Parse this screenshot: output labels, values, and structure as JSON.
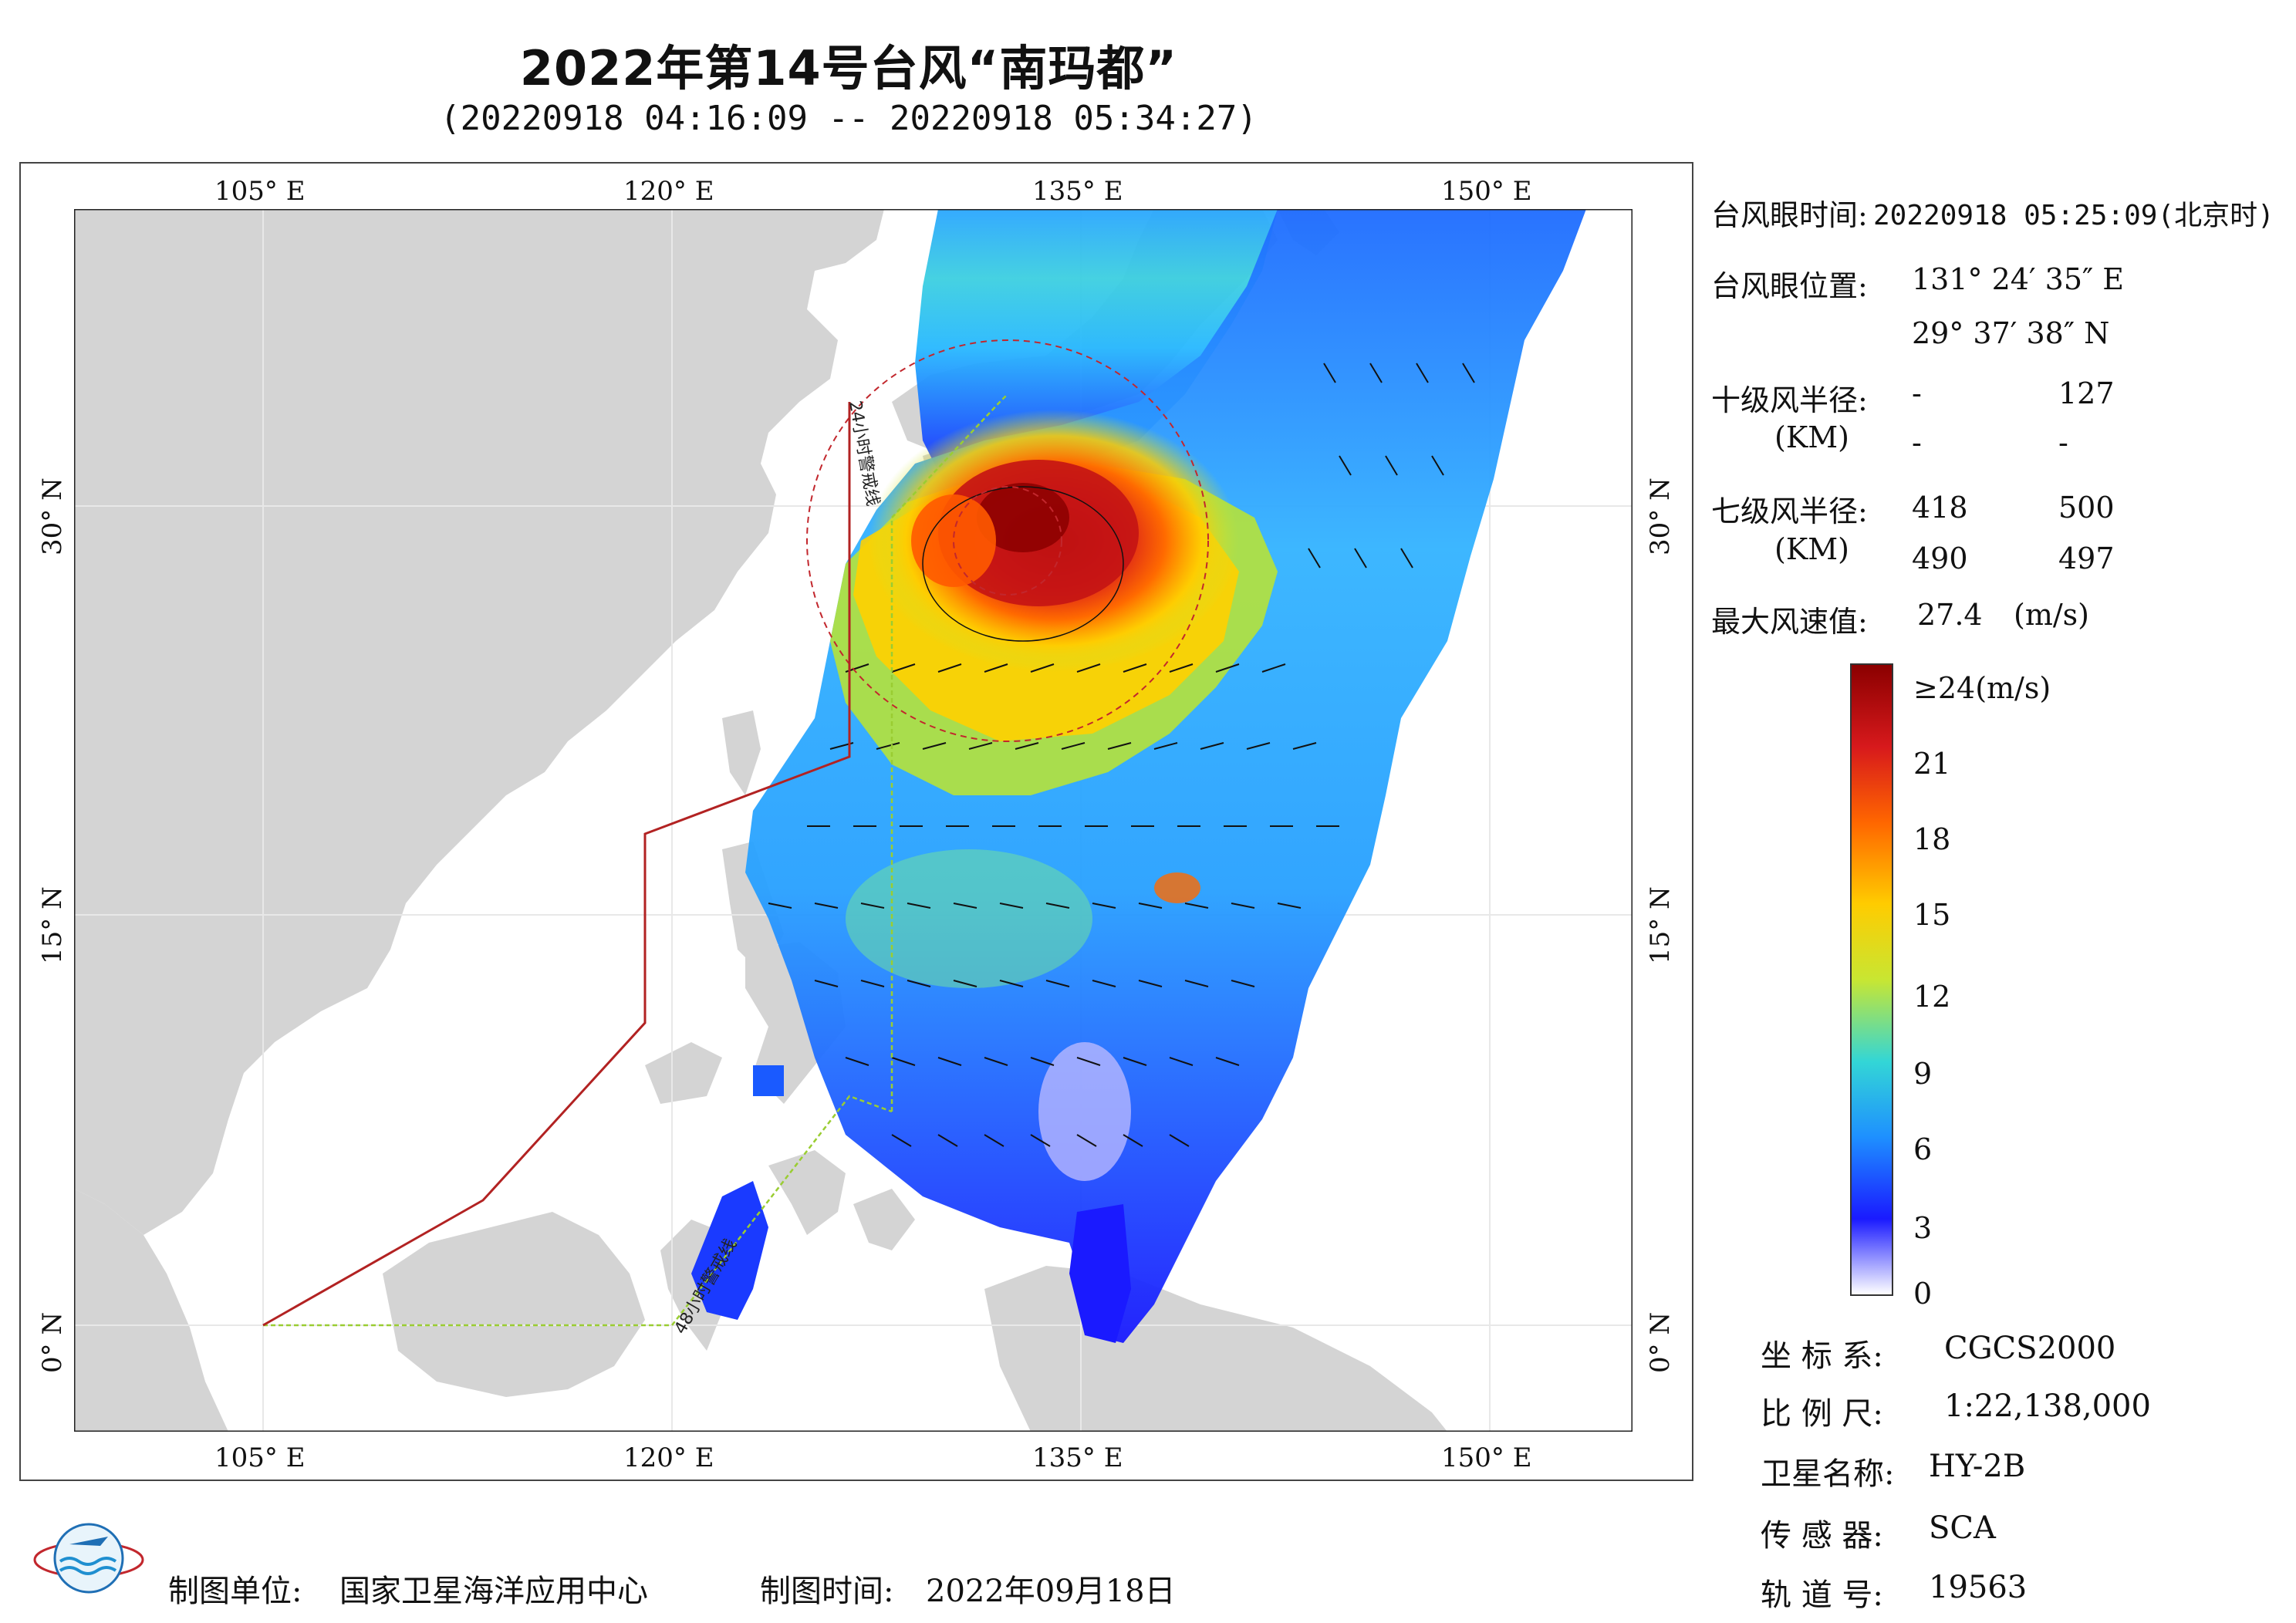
{
  "header": {
    "title": "2022年第14号台风“南玛都”",
    "subtitle": "(20220918 04:16:09 -- 20220918 05:34:27)"
  },
  "map": {
    "lon_ticks": [
      "105° E",
      "120° E",
      "135° E",
      "150° E"
    ],
    "lat_ticks": [
      "30° N",
      "15° N",
      "0° N"
    ],
    "annotations": {
      "line_24h": "24小时警戒线",
      "line_48h": "48小时警戒线"
    },
    "colors": {
      "land": "#d4d4d4",
      "sea": "#ffffff",
      "line_24h": "#c2272d",
      "line_48h": "#9acd32"
    }
  },
  "typhoon_info": {
    "eye_time_label": "台风眼时间:",
    "eye_time_value": "20220918 05:25:09(北京时)",
    "eye_pos_label": "台风眼位置:",
    "eye_lon": "131° 24′ 35″ E",
    "eye_lat": "29° 37′ 38″ N",
    "r10_label": "十级风半径:",
    "r10_unit": "(KM)",
    "r10_values": [
      "-",
      "127",
      "-",
      "-"
    ],
    "r7_label": "七级风半径:",
    "r7_unit": "(KM)",
    "r7_values": [
      "418",
      "500",
      "490",
      "497"
    ],
    "max_wind_label": "最大风速值:",
    "max_wind_value": "27.4",
    "max_wind_unit": "(m/s)"
  },
  "colorbar": {
    "labels": [
      "≥24(m/s)",
      "21",
      "18",
      "15",
      "12",
      "9",
      "6",
      "3",
      "0"
    ],
    "stops": [
      "#8b0000",
      "#d7191c",
      "#ff6600",
      "#ffcc00",
      "#c8e632",
      "#33d6d6",
      "#1e90ff",
      "#1a1aff",
      "#ffffff"
    ]
  },
  "meta": {
    "crs_label": "坐 标 系:",
    "crs_value": "CGCS2000",
    "scale_label": "比 例 尺:",
    "scale_value": "1:22,138,000",
    "satellite_label": "卫星名称:",
    "satellite_value": "HY-2B",
    "sensor_label": "传 感 器:",
    "sensor_value": "SCA",
    "orbit_label": "轨 道 号:",
    "orbit_value": "19563"
  },
  "footer": {
    "unit_label": "制图单位:",
    "unit_value": "国家卫星海洋应用中心",
    "date_label": "制图时间:",
    "date_value": "2022年09月18日"
  }
}
